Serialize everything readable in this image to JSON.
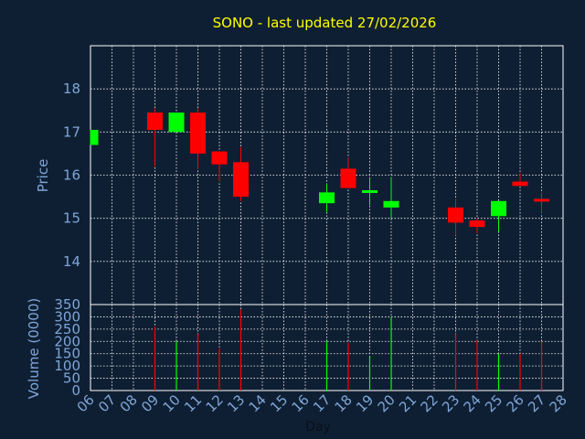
{
  "chart_data": [
    {
      "type": "candlestick",
      "title": "SONO - last updated 27/02/2026",
      "ylabel": "Price",
      "ylim": [
        13,
        19
      ],
      "yticks": [
        14,
        15,
        16,
        17,
        18
      ],
      "grid": true,
      "colors": {
        "up": "#00ff00",
        "down": "#ff0000",
        "title": "#ffff00",
        "axis_label": "#7ea6d8",
        "background": "#0f1f33",
        "grid": "#ffffff"
      },
      "candles": [
        {
          "day": "06",
          "open": 16.7,
          "high": 17.05,
          "low": 16.7,
          "close": 17.05
        },
        {
          "day": "09",
          "open": 17.45,
          "high": 17.55,
          "low": 16.2,
          "close": 17.05
        },
        {
          "day": "10",
          "open": 17.0,
          "high": 17.45,
          "low": 17.0,
          "close": 17.45
        },
        {
          "day": "11",
          "open": 17.45,
          "high": 17.55,
          "low": 16.15,
          "close": 16.5
        },
        {
          "day": "12",
          "open": 16.55,
          "high": 16.55,
          "low": 15.85,
          "close": 16.25
        },
        {
          "day": "13",
          "open": 16.3,
          "high": 16.65,
          "low": 15.4,
          "close": 15.5
        },
        {
          "day": "17",
          "open": 15.35,
          "high": 15.8,
          "low": 15.15,
          "close": 15.6
        },
        {
          "day": "18",
          "open": 16.15,
          "high": 16.4,
          "low": 15.7,
          "close": 15.7
        },
        {
          "day": "19",
          "open": 15.6,
          "high": 15.95,
          "low": 15.3,
          "close": 15.65
        },
        {
          "day": "20",
          "open": 15.25,
          "high": 15.95,
          "low": 15.0,
          "close": 15.4
        },
        {
          "day": "23",
          "open": 15.25,
          "high": 15.45,
          "low": 14.6,
          "close": 14.9
        },
        {
          "day": "24",
          "open": 14.95,
          "high": 15.0,
          "low": 14.65,
          "close": 14.8
        },
        {
          "day": "25",
          "open": 15.05,
          "high": 15.4,
          "low": 14.7,
          "close": 15.4
        },
        {
          "day": "26",
          "open": 15.85,
          "high": 16.05,
          "low": 15.75,
          "close": 15.75
        },
        {
          "day": "27",
          "open": 15.45,
          "high": 15.6,
          "low": 15.1,
          "close": 15.4
        }
      ]
    },
    {
      "type": "bar",
      "ylabel": "Volume (0000)",
      "xlabel": "Day",
      "ylim": [
        0,
        350
      ],
      "yticks": [
        0,
        50,
        100,
        150,
        200,
        250,
        300,
        350
      ],
      "grid": true,
      "categories": [
        "06",
        "07",
        "08",
        "09",
        "10",
        "11",
        "12",
        "13",
        "14",
        "15",
        "16",
        "17",
        "18",
        "19",
        "20",
        "21",
        "22",
        "23",
        "24",
        "25",
        "26",
        "27",
        "28"
      ],
      "volumes": [
        {
          "day": "09",
          "value": 260,
          "color": "#ff0000"
        },
        {
          "day": "10",
          "value": 200,
          "color": "#00ff00"
        },
        {
          "day": "11",
          "value": 230,
          "color": "#ff0000"
        },
        {
          "day": "12",
          "value": 170,
          "color": "#ff0000"
        },
        {
          "day": "13",
          "value": 330,
          "color": "#ff0000"
        },
        {
          "day": "17",
          "value": 200,
          "color": "#00ff00"
        },
        {
          "day": "18",
          "value": 195,
          "color": "#ff0000"
        },
        {
          "day": "19",
          "value": 140,
          "color": "#00ff00"
        },
        {
          "day": "20",
          "value": 300,
          "color": "#00ff00"
        },
        {
          "day": "23",
          "value": 230,
          "color": "#ff0000"
        },
        {
          "day": "24",
          "value": 205,
          "color": "#ff0000"
        },
        {
          "day": "25",
          "value": 150,
          "color": "#00ff00"
        },
        {
          "day": "26",
          "value": 150,
          "color": "#ff0000"
        },
        {
          "day": "27",
          "value": 200,
          "color": "#ff0000"
        }
      ]
    }
  ]
}
